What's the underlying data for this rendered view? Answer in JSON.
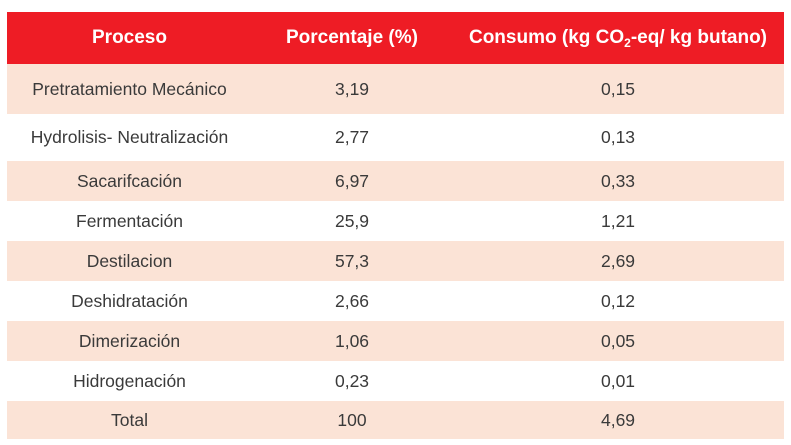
{
  "table": {
    "headers": {
      "process": "Proceso",
      "percentage": "Porcentaje (%)",
      "consumption_prefix": "Consumo (kg CO",
      "consumption_sub": "2",
      "consumption_suffix": "-eq/ kg butano)"
    },
    "rows": [
      {
        "process": "Pretratamiento Mecánico",
        "percentage": "3,19",
        "consumption": "0,15"
      },
      {
        "process": "Hydrolisis- Neutralización",
        "percentage": "2,77",
        "consumption": "0,13"
      },
      {
        "process": "Sacarifcación",
        "percentage": "6,97",
        "consumption": "0,33"
      },
      {
        "process": "Fermentación",
        "percentage": "25,9",
        "consumption": "1,21"
      },
      {
        "process": "Destilacion",
        "percentage": "57,3",
        "consumption": "2,69"
      },
      {
        "process": "Deshidratación",
        "percentage": "2,66",
        "consumption": "0,12"
      },
      {
        "process": "Dimerización",
        "percentage": "1,06",
        "consumption": "0,05"
      },
      {
        "process": "Hidrogenación",
        "percentage": "0,23",
        "consumption": "0,01"
      },
      {
        "process": "Total",
        "percentage": "100",
        "consumption": "4,69"
      }
    ]
  },
  "colors": {
    "header_bg": "#ee1c25",
    "shaded_row_bg": "#fbe3d6",
    "plain_row_bg": "#ffffff"
  }
}
